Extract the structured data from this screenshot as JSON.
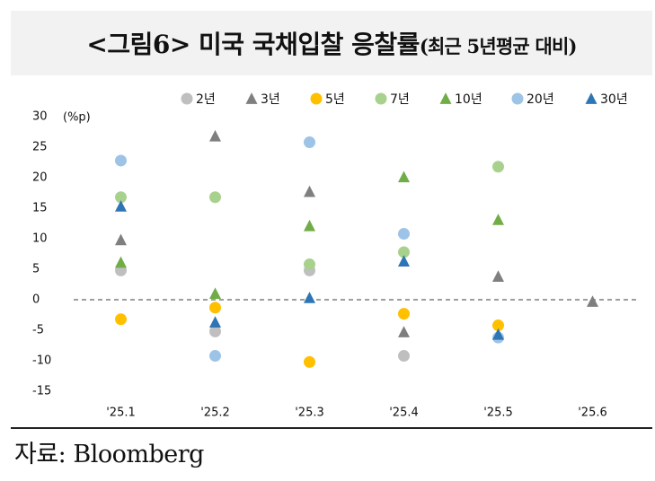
{
  "title": "<그림6> 미국 국채입찰 응찰률",
  "subtitle": "(최근 5년평균 대비)",
  "source": "자료: Bloomberg",
  "colors": {
    "2년": "#bfbfbf",
    "3년": "#7f7f7f",
    "5년": "#ffc000",
    "7년": "#a9d18e",
    "10년": "#70ad47",
    "20년": "#9dc3e6",
    "30년": "#2e75b6",
    "zero_line": "#7f7f7f"
  },
  "chart_data": {
    "type": "scatter",
    "unit_label": "(%p)",
    "categories": [
      "'25.1",
      "'25.2",
      "'25.3",
      "'25.4",
      "'25.5",
      "'25.6"
    ],
    "ylim": [
      -15,
      30
    ],
    "yticks": [
      30,
      25,
      20,
      15,
      10,
      5,
      0,
      -5,
      -10,
      -15
    ],
    "legend_position": "top",
    "grid": false,
    "zero_line": "dashed",
    "series": [
      {
        "name": "2년",
        "marker": "circle",
        "values": [
          4.8,
          -5.2,
          4.8,
          -9.2,
          null,
          null
        ]
      },
      {
        "name": "3년",
        "marker": "triangle",
        "values": [
          9.8,
          26.8,
          17.7,
          -5.3,
          3.8,
          -0.3
        ]
      },
      {
        "name": "5년",
        "marker": "circle",
        "values": [
          -3.2,
          -1.3,
          -10.2,
          -2.3,
          -4.2,
          null
        ]
      },
      {
        "name": "7년",
        "marker": "circle",
        "values": [
          16.8,
          16.8,
          5.8,
          7.8,
          21.8,
          null
        ]
      },
      {
        "name": "10년",
        "marker": "triangle",
        "values": [
          6.1,
          1.0,
          12.1,
          20.1,
          13.1,
          null
        ]
      },
      {
        "name": "20년",
        "marker": "circle",
        "values": [
          22.8,
          -9.2,
          25.8,
          10.8,
          -6.2,
          null
        ]
      },
      {
        "name": "30년",
        "marker": "triangle",
        "values": [
          15.3,
          -3.7,
          0.3,
          6.3,
          -5.7,
          null
        ]
      }
    ]
  }
}
